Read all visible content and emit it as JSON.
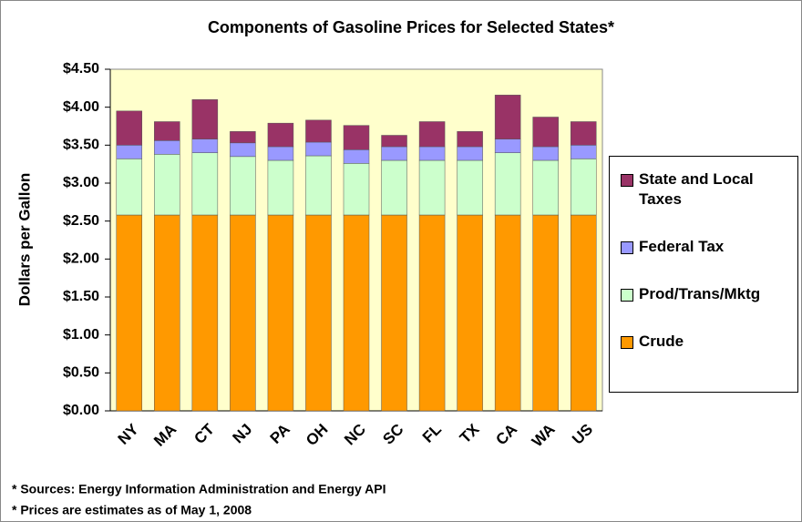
{
  "chart_data": {
    "type": "stacked_bar",
    "title": "Components of Gasoline Prices for Selected States*",
    "y_label": "Dollars per Gallon",
    "categories": [
      "NY",
      "MA",
      "CT",
      "NJ",
      "PA",
      "OH",
      "NC",
      "SC",
      "FL",
      "TX",
      "CA",
      "WA",
      "US"
    ],
    "series": [
      {
        "name": "Crude",
        "color": "#ff9900",
        "values": [
          2.58,
          2.58,
          2.58,
          2.58,
          2.58,
          2.58,
          2.58,
          2.58,
          2.58,
          2.58,
          2.58,
          2.58,
          2.58
        ]
      },
      {
        "name": "Prod/Trans/Mktg",
        "color": "#ccffcc",
        "values": [
          0.74,
          0.8,
          0.82,
          0.77,
          0.72,
          0.78,
          0.68,
          0.72,
          0.72,
          0.72,
          0.82,
          0.72,
          0.74
        ]
      },
      {
        "name": "Federal Tax",
        "color": "#9999ff",
        "values": [
          0.18,
          0.18,
          0.18,
          0.18,
          0.18,
          0.18,
          0.18,
          0.18,
          0.18,
          0.18,
          0.18,
          0.18,
          0.18
        ]
      },
      {
        "name": "State and Local Taxes",
        "color": "#993366",
        "values": [
          0.45,
          0.25,
          0.52,
          0.15,
          0.31,
          0.29,
          0.32,
          0.15,
          0.33,
          0.2,
          0.58,
          0.39,
          0.31
        ]
      }
    ],
    "ylim": [
      0,
      4.5
    ],
    "yticks": [
      {
        "value": 0,
        "label": "$0.00"
      },
      {
        "value": 0.5,
        "label": "$0.50"
      },
      {
        "value": 1,
        "label": "$1.00"
      },
      {
        "value": 1.5,
        "label": "$1.50"
      },
      {
        "value": 2,
        "label": "$2.00"
      },
      {
        "value": 2.5,
        "label": "$2.50"
      },
      {
        "value": 3,
        "label": "$3.00"
      },
      {
        "value": 3.5,
        "label": "$3.50"
      },
      {
        "value": 4,
        "label": "$4.00"
      },
      {
        "value": 4.5,
        "label": "$4.50"
      }
    ],
    "grid": false,
    "legend": "right",
    "plot_background": "#ffffcc",
    "notes": [
      "* Sources:  Energy Information Administration and Energy API",
      "* Prices are estimates as of May 1, 2008"
    ]
  }
}
